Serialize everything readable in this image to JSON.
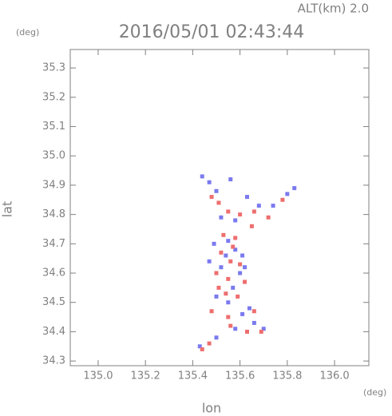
{
  "chart_data": {
    "type": "scatter",
    "title": "2016/05/01 02:43:44",
    "subtitle": "ALT(km) 2.0",
    "y_unit": "(deg)",
    "x_unit": "(deg)",
    "x_label": "lon",
    "y_label": "lat",
    "xlim": [
      134.882,
      136.145
    ],
    "ylim": [
      34.284,
      35.363
    ],
    "xticks": [
      {
        "value": 135.0,
        "label": "135.0"
      },
      135.2,
      135.4,
      135.6,
      135.8,
      {
        "value": 136.0,
        "label": "136.0"
      }
    ],
    "yticks": [
      34.3,
      34.4,
      34.5,
      34.6,
      34.7,
      34.8,
      34.9,
      {
        "value": 35.0,
        "label": "35.0"
      },
      35.1,
      35.2,
      35.3
    ],
    "series": [
      {
        "color": "#7a7aef",
        "x": [
          135.44,
          135.47,
          135.5,
          135.56,
          135.63,
          135.68,
          135.74,
          135.8,
          135.83,
          135.52,
          135.58,
          135.49,
          135.55,
          135.58,
          135.61,
          135.47,
          135.52,
          135.6,
          135.57,
          135.5,
          135.55,
          135.64,
          135.61,
          135.66,
          135.58,
          135.5,
          135.43,
          135.7,
          135.54,
          135.62
        ],
        "y": [
          34.93,
          34.91,
          34.88,
          34.92,
          34.86,
          34.83,
          34.83,
          34.87,
          34.89,
          34.79,
          34.78,
          34.7,
          34.71,
          34.68,
          34.66,
          34.64,
          34.62,
          34.6,
          34.55,
          34.52,
          34.5,
          34.48,
          34.46,
          34.43,
          34.41,
          34.38,
          34.35,
          34.41,
          34.66,
          34.62
        ]
      },
      {
        "color": "#ee6e6e",
        "x": [
          135.48,
          135.51,
          135.55,
          135.6,
          135.66,
          135.72,
          135.78,
          135.65,
          135.53,
          135.58,
          135.52,
          135.56,
          135.5,
          135.55,
          135.62,
          135.54,
          135.59,
          135.48,
          135.66,
          135.55,
          135.63,
          135.69,
          135.56,
          135.47,
          135.44,
          135.6,
          135.57,
          135.51
        ],
        "y": [
          34.86,
          34.84,
          34.81,
          34.8,
          34.81,
          34.79,
          34.85,
          34.76,
          34.73,
          34.72,
          34.67,
          34.64,
          34.6,
          34.58,
          34.57,
          34.53,
          34.52,
          34.47,
          34.47,
          34.45,
          34.4,
          34.4,
          34.42,
          34.36,
          34.34,
          34.63,
          34.69,
          34.55
        ]
      }
    ]
  }
}
